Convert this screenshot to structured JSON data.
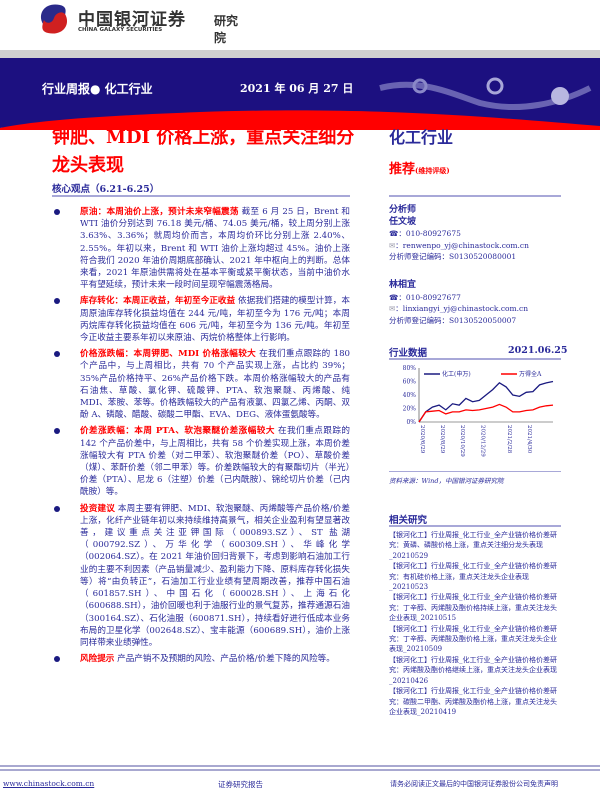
{
  "header": {
    "logo_cn": "中国银河证券",
    "logo_en": "CHINA GALAXY SECURITIES",
    "institute": "研究院",
    "report_type": "行业周报● 化工行业",
    "date": "2021 年 06 月 27 日"
  },
  "title": "钾肥、MDI 价格上涨，重点关注细分龙头表现",
  "core_view": "核心观点（6.21-6.25）",
  "bullets": [
    {
      "lead": "原油：本周油价上涨，预计未来窄幅震荡",
      "body": " 截至 6 月 25 日，Brent 和 WTI 油价分别达到 76.18 美元/桶、74.05 美元/桶，较上周分别上涨 3.63%、3.36%；就周均价而言，本周均价环比分别上涨 2.40%、2.55%。年初以来，Brent 和 WTI 油价上涨均超过 45%。油价上涨符合我们 2020 年油价周期底部确认、2021 年中枢向上的判断。总体来看，2021 年原油供需将处在基本平衡或紧平衡状态，当前中油价水平有望延续，预计未来一段时间呈现窄幅震荡格局。"
    },
    {
      "lead": "库存转化：本周正收益，年初至今正收益",
      "body": " 依据我们搭建的模型计算，本周原油库存转化损益均值在 244 元/吨，年初至今为 176 元/吨；本周丙烷库存转化损益均值在 606 元/吨，年初至今为 136 元/吨。年初至今正收益主要系年初以来原油、丙烷价格整体上行影响。"
    },
    {
      "lead": "价格涨跌幅：本周钾肥、MDI 价格涨幅较大",
      "body": " 在我们重点跟踪的 180 个产品中，与上周相比，共有 70 个产品实现上涨，占比约 39%；35%产品价格持平、26%产品价格下跌。本周价格涨幅较大的产品有石油焦、草酸、氯化钾、硫酸钾、PTA、软泡聚醚、丙烯酸、纯 MDI、苯胺、苯等。价格跌幅较大的产品有液氯、四氯乙烯、丙酮、双酚 A、磷酸、醋酸、碳酸二甲酯、EVA、DEG、液体蛋氨酸等。"
    },
    {
      "lead": "价差涨跌幅：本周 PTA、软泡聚醚价差涨幅较大",
      "body": " 在我们重点跟踪的 142 个产品价差中，与上周相比，共有 58 个价差实现上涨，本周价差涨幅较大有 PTA 价差（对二甲苯）、软泡聚醚价差（PO）、草酸价差（煤）、苯酐价差（邻二甲苯）等。价差跌幅较大的有聚酯切片（半光）价差（PTA）、尼龙 6（注塑）价差（己内酰胺）、锦纶切片价差（己内酰胺）等。"
    },
    {
      "lead": "投资建议",
      "body": " 本周主要有钾肥、MDI、软泡聚醚、丙烯酸等产品价格/价差上涨，化纤产业链年初以来持续维持高景气，相关企业盈利有望显著改善，建议重点关注亚钾国际（000893.SZ）、ST 盐湖（000792.SZ）、万华化学（600309.SH）、华峰化学（002064.SZ）。在 2021 年油价回归背景下，考虑到影响石油加工行业的主要不利因素（产品销量减少、盈利能力下降、原料库存转化损失等）将“由负转正”，石油加工行业业绩有望周期改善，推荐中国石油（601857.SH）、中国石化（600028.SH）、上海石化（600688.SH），油价回暖也利于油服行业的景气复苏，推荐通源石油（300164.SZ）、石化油服（600871.SH），持续看好进行低成本业务布局的卫星化学（002648.SZ）、宝丰能源（600689.SH），油价上涨同样带来业绩弹性。"
    },
    {
      "lead": "风险提示",
      "body": " 产品产销不及预期的风险、产品价格/价差下降的风险等。"
    }
  ],
  "sidebar": {
    "industry": "化工行业",
    "rating": "推荐",
    "rating_note": "(维持评级)",
    "analyst_heading": "分析师",
    "analysts": [
      {
        "name": "任文坡",
        "phone": "：010-80927675",
        "email": "：renwenpo_yj@chinastock.com.cn",
        "reg": "分析师登记编码：S0130520080001"
      },
      {
        "name": "林相宜",
        "phone": "：010-80927677",
        "email": "：linxiangyi_yj@chinastock.com.cn",
        "reg": "分析师登记编码：S0130520050007"
      }
    ],
    "data_heading": "行业数据",
    "data_date": "2021.06.25",
    "source": "资料来源：Wind，中国银河证券研究院",
    "related_heading": "相关研究",
    "related": [
      "【银河化工】行业周报_化工行业_全产业链价格价差研究：黄磷、磷酸价格上涨，重点关注细分龙头表现_20210529",
      "【银河化工】行业周报_化工行业_全产业链价格价差研究：有机硅价格上涨，重点关注龙头企业表现_20210523",
      "【银河化工】行业周报_化工行业_全产业链价格价差研究：丁辛醇、丙烯酸及酯价格持续上涨，重点关注龙头企业表现_20210515",
      "【银河化工】行业周报_化工行业_全产业链价格价差研究：丁辛醇、丙烯酸及酯价格上涨，重点关注龙头企业表现_20210509",
      "【银河化工】行业周报_化工行业_全产业链价格价差研究：丙烯酸及酯价格继续上涨，重点关注龙头企业表现_20210426",
      "【银河化工】行业周报_化工行业_全产业链价格价差研究：碳酸二甲酯、丙烯酸及酯价格上涨，重点关注龙头企业表现_20210419"
    ]
  },
  "chart_data": {
    "type": "line",
    "xlabel": "",
    "ylabel": "",
    "ylim": [
      0,
      80
    ],
    "yticks": [
      "0%",
      "20%",
      "40%",
      "60%",
      "80%"
    ],
    "xticks": [
      "2020/6/29",
      "2020/8/29",
      "2020/10/29",
      "2020/12/29",
      "2021/2/28",
      "2021/4/30"
    ],
    "legend": "top",
    "x": [
      "2020/6/29",
      "2020/7/15",
      "2020/8/1",
      "2020/8/29",
      "2020/9/15",
      "2020/10/1",
      "2020/10/29",
      "2020/11/15",
      "2020/12/1",
      "2020/12/29",
      "2021/1/15",
      "2021/2/1",
      "2021/2/18",
      "2021/2/28",
      "2021/3/15",
      "2021/4/1",
      "2021/4/30",
      "2021/5/15",
      "2021/6/1",
      "2021/6/10",
      "2021/6/25"
    ],
    "series": [
      {
        "name": "化工(申万)",
        "color": "#1a1a80",
        "values": [
          0,
          15,
          22,
          25,
          18,
          27,
          25,
          35,
          30,
          32,
          40,
          48,
          58,
          52,
          40,
          38,
          44,
          45,
          55,
          58,
          60
        ]
      },
      {
        "name": "万得全A",
        "color": "#f00",
        "values": [
          0,
          15,
          16,
          17,
          12,
          15,
          15,
          18,
          17,
          18,
          20,
          22,
          26,
          22,
          15,
          15,
          17,
          18,
          22,
          24,
          25
        ]
      }
    ]
  },
  "footer": {
    "url": "www.chinastock.com.cn",
    "center": "证券研究报告",
    "right": "请务必阅读正文最后的中国银河证券股份公司免责声明"
  }
}
